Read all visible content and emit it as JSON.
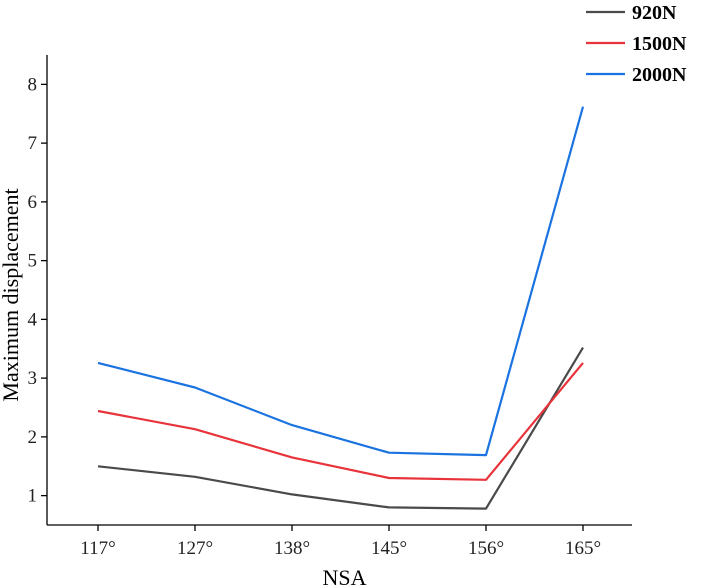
{
  "chart_data": {
    "type": "line",
    "xlabel": "NSA",
    "ylabel": "Maximum displacement",
    "categories": [
      "117°",
      "127°",
      "138°",
      "145°",
      "156°",
      "165°"
    ],
    "ylim": [
      0.5,
      8.5
    ],
    "yticks": [
      1,
      2,
      3,
      4,
      5,
      6,
      7,
      8
    ],
    "grid": false,
    "legend_position": "top-right",
    "series": [
      {
        "name": "920N",
        "color": "#4a4a4a",
        "values": [
          1.5,
          1.32,
          1.02,
          0.8,
          0.78,
          3.52
        ]
      },
      {
        "name": "1500N",
        "color": "#e8333a",
        "values": [
          2.44,
          2.13,
          1.65,
          1.3,
          1.27,
          3.26
        ]
      },
      {
        "name": "2000N",
        "color": "#1a73e0",
        "values": [
          3.26,
          2.84,
          2.2,
          1.73,
          1.69,
          7.62
        ]
      }
    ]
  }
}
